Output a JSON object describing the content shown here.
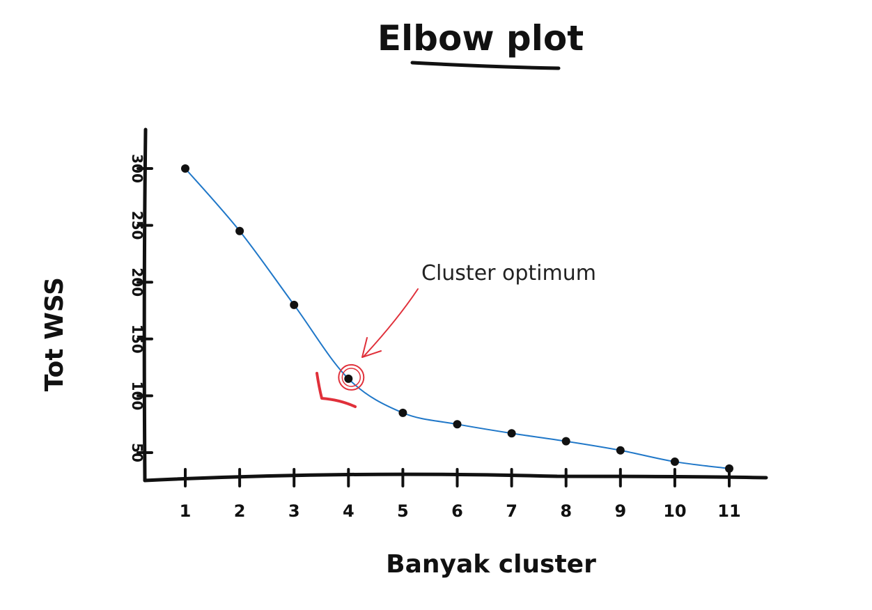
{
  "chart_data": {
    "type": "line",
    "title": "Elbow plot",
    "xlabel": "Banyak cluster",
    "ylabel": "Tot WSS",
    "x": [
      1,
      2,
      3,
      4,
      5,
      6,
      7,
      8,
      9,
      10,
      11
    ],
    "x_tick_labels": [
      "1",
      "2",
      "3",
      "4",
      "5",
      "6",
      "7",
      "8",
      "9",
      "10",
      "11"
    ],
    "y_ticks": [
      50,
      100,
      150,
      200,
      250,
      300
    ],
    "y_tick_labels": [
      "50",
      "100",
      "150",
      "200",
      "250",
      "300"
    ],
    "series": [
      {
        "values": [
          300,
          245,
          180,
          115,
          85,
          75,
          67,
          60,
          52,
          42,
          36
        ],
        "line_color": "#1f77c8",
        "marker_color": "#111111"
      }
    ],
    "ylim": [
      25,
      335
    ],
    "xlim": [
      0.5,
      11.5
    ],
    "grid": false,
    "annotation": {
      "text": "Cluster optimum",
      "x": 4,
      "y": 115,
      "color": "#e0303a"
    }
  }
}
